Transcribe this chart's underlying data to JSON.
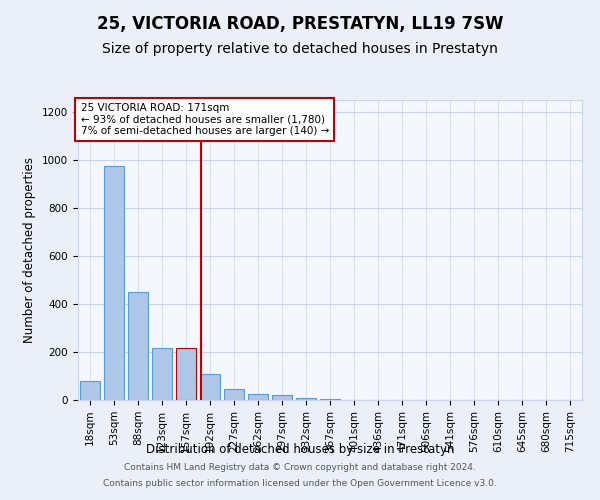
{
  "title": "25, VICTORIA ROAD, PRESTATYN, LL19 7SW",
  "subtitle": "Size of property relative to detached houses in Prestatyn",
  "xlabel": "Distribution of detached houses by size in Prestatyn",
  "ylabel": "Number of detached properties",
  "bin_labels": [
    "18sqm",
    "53sqm",
    "88sqm",
    "123sqm",
    "157sqm",
    "192sqm",
    "227sqm",
    "262sqm",
    "297sqm",
    "332sqm",
    "367sqm",
    "401sqm",
    "436sqm",
    "471sqm",
    "506sqm",
    "541sqm",
    "576sqm",
    "610sqm",
    "645sqm",
    "680sqm",
    "715sqm"
  ],
  "bar_heights": [
    80,
    975,
    450,
    215,
    215,
    110,
    45,
    25,
    20,
    10,
    5,
    0,
    0,
    0,
    0,
    0,
    0,
    0,
    0,
    0,
    0
  ],
  "bar_color": "#aec6e8",
  "bar_edge_color": "#5b9bd5",
  "highlight_bar_index": 4,
  "highlight_bar_edge_color": "#c00000",
  "red_line_x": 4.62,
  "red_line_color": "#c00000",
  "annotation_title": "25 VICTORIA ROAD: 171sqm",
  "annotation_line1": "← 93% of detached houses are smaller (1,780)",
  "annotation_line2": "7% of semi-detached houses are larger (140) →",
  "annotation_box_color": "#ffffff",
  "annotation_box_edge_color": "#c00000",
  "ylim": [
    0,
    1250
  ],
  "yticks": [
    0,
    200,
    400,
    600,
    800,
    1000,
    1200
  ],
  "footer_line1": "Contains HM Land Registry data © Crown copyright and database right 2024.",
  "footer_line2": "Contains public sector information licensed under the Open Government Licence v3.0.",
  "bg_color": "#eaeff8",
  "plot_bg_color": "#f4f7fd",
  "grid_color": "#c8d4e8",
  "title_fontsize": 12,
  "subtitle_fontsize": 10,
  "axis_label_fontsize": 8.5,
  "tick_fontsize": 7.5,
  "footer_fontsize": 6.5
}
